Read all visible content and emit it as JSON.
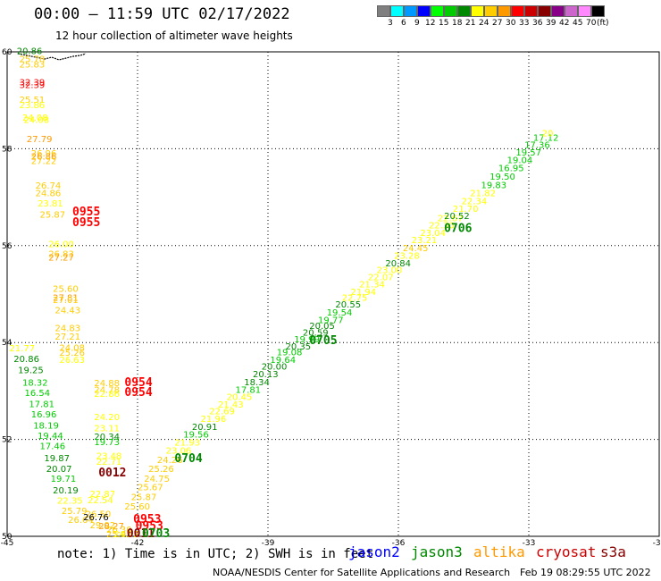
{
  "header": {
    "title": "00:00 – 11:59 UTC 02/17/2022",
    "subtitle": "12 hour collection of altimeter wave heights"
  },
  "legend": {
    "colors": [
      "#7f7f7f",
      "#00ffff",
      "#0099ff",
      "#0000ff",
      "#00ff00",
      "#00cc00",
      "#008800",
      "#ffff00",
      "#ffcc00",
      "#ff9900",
      "#ff0000",
      "#cc0000",
      "#880000",
      "#880088",
      "#cc66cc",
      "#ff88ff",
      "#000000"
    ],
    "labels": [
      "3",
      "6",
      "9",
      "12",
      "15",
      "18",
      "21",
      "24",
      "27",
      "30",
      "33",
      "36",
      "39",
      "42",
      "45",
      "70",
      "(ft)"
    ]
  },
  "map": {
    "lon_ticks": [
      "-45",
      "-42",
      "-39",
      "-36",
      "-33",
      "-30"
    ],
    "lat_ticks": [
      "60",
      "58",
      "56",
      "54",
      "52",
      "50"
    ],
    "observations": [
      {
        "lon": -44.78,
        "lat": 59.95,
        "v": "20.86",
        "c": "#008800"
      },
      {
        "lon": -44.72,
        "lat": 59.79,
        "v": "25.78",
        "c": "#ffcc00"
      },
      {
        "lon": -44.72,
        "lat": 59.68,
        "v": "25.83",
        "c": "#ffcc00"
      },
      {
        "lon": -44.72,
        "lat": 59.31,
        "v": "32.39",
        "c": "#ff0000"
      },
      {
        "lon": -44.72,
        "lat": 59.25,
        "v": "32.39",
        "c": "#ff0000"
      },
      {
        "lon": -44.72,
        "lat": 58.95,
        "v": "25.51",
        "c": "#ffcc00"
      },
      {
        "lon": -44.72,
        "lat": 58.84,
        "v": "23.86",
        "c": "#ffff00"
      },
      {
        "lon": -44.65,
        "lat": 58.58,
        "v": "24.08",
        "c": "#ffff00"
      },
      {
        "lon": -44.62,
        "lat": 58.53,
        "v": "24.08",
        "c": "#ffff00"
      },
      {
        "lon": -44.55,
        "lat": 58.14,
        "v": "27.79",
        "c": "#ff9900"
      },
      {
        "lon": -44.45,
        "lat": 57.84,
        "v": "26.96",
        "c": "#ffcc00"
      },
      {
        "lon": -44.45,
        "lat": 57.78,
        "v": "26.86",
        "c": "#ff9900"
      },
      {
        "lon": -44.45,
        "lat": 57.68,
        "v": "27.22",
        "c": "#ffcc00"
      },
      {
        "lon": -44.35,
        "lat": 57.18,
        "v": "26.74",
        "c": "#ffcc00"
      },
      {
        "lon": -44.35,
        "lat": 57.02,
        "v": "24.86",
        "c": "#ffcc00"
      },
      {
        "lon": -44.3,
        "lat": 56.81,
        "v": "23.81",
        "c": "#ffff00"
      },
      {
        "lon": -44.25,
        "lat": 56.58,
        "v": "25.87",
        "c": "#ffcc00"
      },
      {
        "lon": -44.05,
        "lat": 55.97,
        "v": "26.00",
        "c": "#ffff00"
      },
      {
        "lon": -44.05,
        "lat": 55.77,
        "v": "26.83",
        "c": "#ffcc00"
      },
      {
        "lon": -44.05,
        "lat": 55.69,
        "v": "27.27",
        "c": "#ff9900"
      },
      {
        "lon": -43.95,
        "lat": 55.05,
        "v": "25.60",
        "c": "#ffcc00"
      },
      {
        "lon": -43.95,
        "lat": 54.86,
        "v": "27.81",
        "c": "#ff9900"
      },
      {
        "lon": -43.95,
        "lat": 54.82,
        "v": "27.01",
        "c": "#ffcc00"
      },
      {
        "lon": -43.9,
        "lat": 54.6,
        "v": "24.43",
        "c": "#ffcc00"
      },
      {
        "lon": -43.9,
        "lat": 54.23,
        "v": "24.83",
        "c": "#ffcc00"
      },
      {
        "lon": -43.9,
        "lat": 54.06,
        "v": "27.21",
        "c": "#ffcc00"
      },
      {
        "lon": -43.8,
        "lat": 53.83,
        "v": "24.08",
        "c": "#ffcc00"
      },
      {
        "lon": -43.8,
        "lat": 53.73,
        "v": "25.26",
        "c": "#ffcc00"
      },
      {
        "lon": -43.8,
        "lat": 53.58,
        "v": "26.63",
        "c": "#ffff00"
      },
      {
        "lon": -44.95,
        "lat": 53.82,
        "v": "21.77",
        "c": "#ffff00"
      },
      {
        "lon": -44.85,
        "lat": 53.6,
        "v": "20.86",
        "c": "#008800"
      },
      {
        "lon": -44.75,
        "lat": 53.37,
        "v": "19.25",
        "c": "#008800"
      },
      {
        "lon": -44.65,
        "lat": 53.11,
        "v": "18.32",
        "c": "#00cc00"
      },
      {
        "lon": -44.6,
        "lat": 52.9,
        "v": "16.54",
        "c": "#00cc00"
      },
      {
        "lon": -44.5,
        "lat": 52.67,
        "v": "17.81",
        "c": "#00cc00"
      },
      {
        "lon": -44.45,
        "lat": 52.45,
        "v": "16.96",
        "c": "#00cc00"
      },
      {
        "lon": -44.4,
        "lat": 52.22,
        "v": "18.19",
        "c": "#00cc00"
      },
      {
        "lon": -44.3,
        "lat": 52.01,
        "v": "19.44",
        "c": "#00cc00"
      },
      {
        "lon": -44.25,
        "lat": 51.8,
        "v": "17.46",
        "c": "#00cc00"
      },
      {
        "lon": -44.15,
        "lat": 51.55,
        "v": "19.87",
        "c": "#008800"
      },
      {
        "lon": -44.1,
        "lat": 51.33,
        "v": "20.07",
        "c": "#008800"
      },
      {
        "lon": -44.0,
        "lat": 51.13,
        "v": "19.71",
        "c": "#00cc00"
      },
      {
        "lon": -43.95,
        "lat": 50.89,
        "v": "20.19",
        "c": "#008800"
      },
      {
        "lon": -43.85,
        "lat": 50.67,
        "v": "22.35",
        "c": "#ffff00"
      },
      {
        "lon": -43.75,
        "lat": 50.46,
        "v": "25.79",
        "c": "#ffcc00"
      },
      {
        "lon": -43.6,
        "lat": 50.28,
        "v": "26.64",
        "c": "#ffcc00"
      },
      {
        "lon": -43.0,
        "lat": 53.1,
        "v": "24.88",
        "c": "#ffcc00"
      },
      {
        "lon": -43.0,
        "lat": 52.96,
        "v": "24.78",
        "c": "#ffcc00"
      },
      {
        "lon": -43.0,
        "lat": 52.88,
        "v": "22.86",
        "c": "#ffff00"
      },
      {
        "lon": -43.0,
        "lat": 52.4,
        "v": "24.20",
        "c": "#ffff00"
      },
      {
        "lon": -43.0,
        "lat": 52.17,
        "v": "23.11",
        "c": "#ffff00"
      },
      {
        "lon": -43.0,
        "lat": 51.99,
        "v": "20.34",
        "c": "#008800"
      },
      {
        "lon": -43.0,
        "lat": 51.88,
        "v": "19.73",
        "c": "#00cc00"
      },
      {
        "lon": -42.95,
        "lat": 51.6,
        "v": "23.48",
        "c": "#ffff00"
      },
      {
        "lon": -42.95,
        "lat": 51.48,
        "v": "22.71",
        "c": "#ffff00"
      },
      {
        "lon": -43.1,
        "lat": 50.81,
        "v": "22.87",
        "c": "#ffff00"
      },
      {
        "lon": -43.15,
        "lat": 50.68,
        "v": "22.54",
        "c": "#ffff00"
      },
      {
        "lon": -43.2,
        "lat": 50.4,
        "v": "26.50",
        "c": "#ffcc00"
      },
      {
        "lon": -43.25,
        "lat": 50.33,
        "v": "26.76",
        "c": "#000000"
      },
      {
        "lon": -43.1,
        "lat": 50.17,
        "v": "29.02",
        "c": "#ffcc00"
      },
      {
        "lon": -42.9,
        "lat": 50.15,
        "v": "28.27",
        "c": "#ff9900"
      },
      {
        "lon": -42.72,
        "lat": 50.07,
        "v": "26.30",
        "c": "#ffcc00"
      },
      {
        "lon": -42.72,
        "lat": 49.98,
        "v": "25.91",
        "c": "#ffcc00"
      },
      {
        "lon": -42.55,
        "lat": 49.98,
        "v": "24.72",
        "c": "#ffff00"
      },
      {
        "lon": -42.3,
        "lat": 50.55,
        "v": "25.60",
        "c": "#ffcc00"
      },
      {
        "lon": -42.15,
        "lat": 50.75,
        "v": "25.87",
        "c": "#ffcc00"
      },
      {
        "lon": -42.0,
        "lat": 50.95,
        "v": "25.67",
        "c": "#ffcc00"
      },
      {
        "lon": -41.85,
        "lat": 51.13,
        "v": "24.75",
        "c": "#ffcc00"
      },
      {
        "lon": -41.75,
        "lat": 51.33,
        "v": "25.26",
        "c": "#ffcc00"
      },
      {
        "lon": -41.55,
        "lat": 51.51,
        "v": "24.26",
        "c": "#ffcc00"
      },
      {
        "lon": -41.35,
        "lat": 51.71,
        "v": "23.06",
        "c": "#ffff00"
      },
      {
        "lon": -41.15,
        "lat": 51.87,
        "v": "21.93",
        "c": "#ffff00"
      },
      {
        "lon": -40.95,
        "lat": 52.04,
        "v": "19.56",
        "c": "#00cc00"
      },
      {
        "lon": -40.75,
        "lat": 52.2,
        "v": "20.91",
        "c": "#008800"
      },
      {
        "lon": -40.55,
        "lat": 52.36,
        "v": "21.96",
        "c": "#ffff00"
      },
      {
        "lon": -40.35,
        "lat": 52.52,
        "v": "22.69",
        "c": "#ffff00"
      },
      {
        "lon": -40.15,
        "lat": 52.66,
        "v": "21.43",
        "c": "#ffff00"
      },
      {
        "lon": -39.95,
        "lat": 52.81,
        "v": "20.45",
        "c": "#ffff00"
      },
      {
        "lon": -39.75,
        "lat": 52.96,
        "v": "17.81",
        "c": "#00cc00"
      },
      {
        "lon": -39.55,
        "lat": 53.12,
        "v": "18.34",
        "c": "#008800"
      },
      {
        "lon": -39.35,
        "lat": 53.28,
        "v": "20.13",
        "c": "#008800"
      },
      {
        "lon": -39.15,
        "lat": 53.44,
        "v": "20.00",
        "c": "#008800"
      },
      {
        "lon": -38.95,
        "lat": 53.58,
        "v": "19.64",
        "c": "#00cc00"
      },
      {
        "lon": -38.8,
        "lat": 53.74,
        "v": "19.08",
        "c": "#00cc00"
      },
      {
        "lon": -38.6,
        "lat": 53.86,
        "v": "20.35",
        "c": "#008800"
      },
      {
        "lon": -38.4,
        "lat": 54.0,
        "v": "19.99",
        "c": "#00cc00"
      },
      {
        "lon": -38.2,
        "lat": 54.14,
        "v": "20.59",
        "c": "#008800"
      },
      {
        "lon": -38.05,
        "lat": 54.28,
        "v": "20.05",
        "c": "#008800"
      },
      {
        "lon": -37.85,
        "lat": 54.4,
        "v": "19.77",
        "c": "#00cc00"
      },
      {
        "lon": -37.65,
        "lat": 54.56,
        "v": "19.54",
        "c": "#00cc00"
      },
      {
        "lon": -37.45,
        "lat": 54.72,
        "v": "20.55",
        "c": "#008800"
      },
      {
        "lon": -37.3,
        "lat": 54.86,
        "v": "22.75",
        "c": "#ffff00"
      },
      {
        "lon": -37.1,
        "lat": 54.98,
        "v": "21.94",
        "c": "#ffff00"
      },
      {
        "lon": -36.9,
        "lat": 55.14,
        "v": "21.34",
        "c": "#ffff00"
      },
      {
        "lon": -36.7,
        "lat": 55.29,
        "v": "22.07",
        "c": "#ffff00"
      },
      {
        "lon": -36.5,
        "lat": 55.43,
        "v": "23.00",
        "c": "#ffff00"
      },
      {
        "lon": -36.3,
        "lat": 55.57,
        "v": "20.84",
        "c": "#008800"
      },
      {
        "lon": -36.1,
        "lat": 55.73,
        "v": "23.28",
        "c": "#ffff00"
      },
      {
        "lon": -35.9,
        "lat": 55.89,
        "v": "24.45",
        "c": "#ffcc00"
      },
      {
        "lon": -35.7,
        "lat": 56.05,
        "v": "23.21",
        "c": "#ffff00"
      },
      {
        "lon": -35.5,
        "lat": 56.2,
        "v": "23.04",
        "c": "#ffff00"
      },
      {
        "lon": -35.3,
        "lat": 56.36,
        "v": "22.30",
        "c": "#ffff00"
      },
      {
        "lon": -35.1,
        "lat": 56.5,
        "v": "22.67",
        "c": "#ffff00"
      },
      {
        "lon": -34.95,
        "lat": 56.55,
        "v": "20.52",
        "c": "#008800"
      },
      {
        "lon": -34.75,
        "lat": 56.7,
        "v": "21.70",
        "c": "#ffff00"
      },
      {
        "lon": -34.55,
        "lat": 56.85,
        "v": "22.34",
        "c": "#ffff00"
      },
      {
        "lon": -34.35,
        "lat": 57.02,
        "v": "21.82",
        "c": "#ffff00"
      },
      {
        "lon": -34.1,
        "lat": 57.19,
        "v": "19.83",
        "c": "#00cc00"
      },
      {
        "lon": -33.9,
        "lat": 57.36,
        "v": "19.50",
        "c": "#00cc00"
      },
      {
        "lon": -33.7,
        "lat": 57.54,
        "v": "16.95",
        "c": "#00cc00"
      },
      {
        "lon": -33.5,
        "lat": 57.7,
        "v": "19.04",
        "c": "#00cc00"
      },
      {
        "lon": -33.3,
        "lat": 57.86,
        "v": "19.57",
        "c": "#00cc00"
      },
      {
        "lon": -33.1,
        "lat": 58.02,
        "v": "17.36",
        "c": "#00cc00"
      },
      {
        "lon": -32.9,
        "lat": 58.16,
        "v": "17.12",
        "c": "#00cc00"
      },
      {
        "lon": -32.7,
        "lat": 58.26,
        "v": "20",
        "c": "#ffff00"
      }
    ],
    "time_labels": [
      {
        "lon": -43.5,
        "lat": 56.62,
        "t": "0955",
        "c": "#ff0000"
      },
      {
        "lon": -43.5,
        "lat": 56.4,
        "t": "0955",
        "c": "#ff0000"
      },
      {
        "lon": -42.3,
        "lat": 53.1,
        "t": "0954",
        "c": "#ff0000"
      },
      {
        "lon": -42.3,
        "lat": 52.9,
        "t": "0954",
        "c": "#ff0000"
      },
      {
        "lon": -42.9,
        "lat": 51.24,
        "t": "0012",
        "c": "#880000"
      },
      {
        "lon": -42.1,
        "lat": 50.28,
        "t": "0953",
        "c": "#ff0000"
      },
      {
        "lon": -42.05,
        "lat": 50.14,
        "t": "0953",
        "c": "#ff0000"
      },
      {
        "lon": -42.25,
        "lat": 49.98,
        "t": "0011",
        "c": "#880000"
      },
      {
        "lon": -41.9,
        "lat": 49.98,
        "t": "0703",
        "c": "#008800"
      },
      {
        "lon": -41.15,
        "lat": 51.53,
        "t": "0704",
        "c": "#008800"
      },
      {
        "lon": -38.05,
        "lat": 53.97,
        "t": "0705",
        "c": "#008800"
      },
      {
        "lon": -34.95,
        "lat": 56.28,
        "t": "0706",
        "c": "#008800"
      }
    ]
  },
  "footer": {
    "note": "note: 1) Time is in UTC; 2) SWH is in feet",
    "satellites": [
      {
        "name": "jason2",
        "color": "#0000ff"
      },
      {
        "name": "jason3",
        "color": "#008800"
      },
      {
        "name": "altika",
        "color": "#ff9900"
      },
      {
        "name": "cryosat",
        "color": "#cc0000"
      },
      {
        "name": "s3a",
        "color": "#880000"
      }
    ],
    "credit": "NOAA/NESDIS Center for Satellite Applications and Research",
    "timestamp": "Feb 19 08:29:55 UTC 2022"
  }
}
